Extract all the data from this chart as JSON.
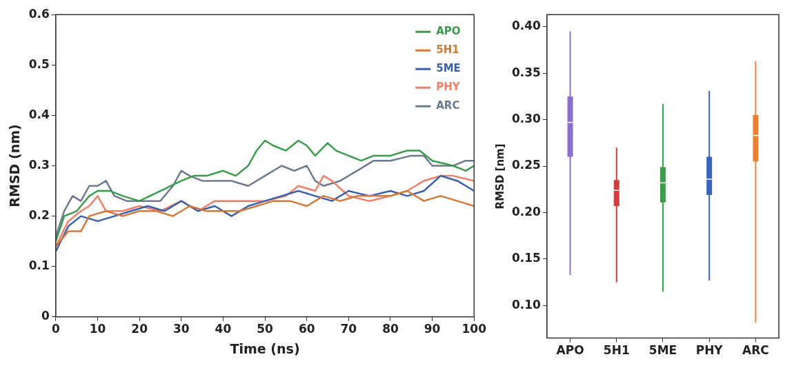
{
  "chart_data": [
    {
      "type": "line",
      "xlabel": "Time (ns)",
      "ylabel": "RMSD (nm)",
      "xlim": [
        0,
        100
      ],
      "ylim": [
        0,
        0.6
      ],
      "xticks": [
        0,
        10,
        20,
        30,
        40,
        50,
        60,
        70,
        80,
        90,
        100
      ],
      "yticks": [
        0,
        0.1,
        0.2,
        0.3,
        0.4,
        0.5,
        0.6
      ],
      "grid": false,
      "legend": "top right",
      "marker": "none",
      "line_style": "solid",
      "series": [
        {
          "name": "APO",
          "color": "#3a9b4a",
          "x": [
            0,
            2,
            5,
            8,
            10,
            13,
            16,
            20,
            25,
            30,
            33,
            36,
            40,
            43,
            46,
            48,
            50,
            52,
            55,
            58,
            60,
            62,
            65,
            67,
            70,
            73,
            76,
            80,
            84,
            87,
            90,
            95,
            98,
            100
          ],
          "values": [
            0.15,
            0.2,
            0.21,
            0.24,
            0.25,
            0.25,
            0.24,
            0.23,
            0.25,
            0.27,
            0.28,
            0.28,
            0.29,
            0.28,
            0.3,
            0.33,
            0.35,
            0.34,
            0.33,
            0.35,
            0.34,
            0.32,
            0.345,
            0.33,
            0.32,
            0.31,
            0.32,
            0.32,
            0.33,
            0.33,
            0.31,
            0.3,
            0.29,
            0.3
          ]
        },
        {
          "name": "5H1",
          "color": "#d2793a",
          "x": [
            0,
            3,
            6,
            8,
            12,
            16,
            20,
            24,
            28,
            32,
            36,
            40,
            44,
            48,
            52,
            56,
            60,
            64,
            68,
            72,
            76,
            80,
            84,
            88,
            92,
            96,
            100
          ],
          "values": [
            0.14,
            0.17,
            0.17,
            0.2,
            0.21,
            0.2,
            0.21,
            0.21,
            0.2,
            0.22,
            0.21,
            0.21,
            0.21,
            0.22,
            0.23,
            0.23,
            0.22,
            0.24,
            0.23,
            0.24,
            0.24,
            0.24,
            0.25,
            0.23,
            0.24,
            0.23,
            0.22
          ]
        },
        {
          "name": "5ME",
          "color": "#3a5fae",
          "x": [
            0,
            3,
            6,
            10,
            14,
            18,
            22,
            26,
            30,
            34,
            38,
            42,
            46,
            50,
            54,
            58,
            62,
            66,
            70,
            75,
            80,
            84,
            88,
            92,
            96,
            100
          ],
          "values": [
            0.13,
            0.18,
            0.2,
            0.19,
            0.2,
            0.21,
            0.22,
            0.21,
            0.23,
            0.21,
            0.22,
            0.2,
            0.22,
            0.23,
            0.24,
            0.25,
            0.24,
            0.23,
            0.25,
            0.24,
            0.25,
            0.24,
            0.25,
            0.28,
            0.27,
            0.25
          ]
        },
        {
          "name": "PHY",
          "color": "#f07f6a",
          "x": [
            0,
            3,
            6,
            8,
            10,
            12,
            16,
            20,
            25,
            30,
            34,
            38,
            42,
            46,
            50,
            55,
            58,
            62,
            64,
            66,
            70,
            75,
            80,
            84,
            88,
            92,
            95,
            100
          ],
          "values": [
            0.14,
            0.19,
            0.21,
            0.22,
            0.24,
            0.21,
            0.21,
            0.22,
            0.21,
            0.23,
            0.21,
            0.23,
            0.23,
            0.23,
            0.23,
            0.24,
            0.26,
            0.25,
            0.28,
            0.27,
            0.24,
            0.23,
            0.24,
            0.25,
            0.27,
            0.28,
            0.28,
            0.27
          ]
        },
        {
          "name": "ARC",
          "color": "#6b7a8f",
          "x": [
            0,
            2,
            4,
            6,
            8,
            10,
            12,
            14,
            17,
            20,
            25,
            28,
            30,
            32,
            35,
            38,
            42,
            46,
            50,
            54,
            57,
            60,
            62,
            64,
            68,
            72,
            76,
            80,
            85,
            88,
            90,
            95,
            98,
            100
          ],
          "values": [
            0.16,
            0.21,
            0.24,
            0.23,
            0.26,
            0.26,
            0.27,
            0.24,
            0.23,
            0.23,
            0.23,
            0.26,
            0.29,
            0.28,
            0.27,
            0.27,
            0.27,
            0.26,
            0.28,
            0.3,
            0.29,
            0.3,
            0.27,
            0.26,
            0.27,
            0.29,
            0.31,
            0.31,
            0.32,
            0.32,
            0.3,
            0.3,
            0.31,
            0.31
          ]
        }
      ]
    },
    {
      "type": "box",
      "ylabel": "RMSD [nm]",
      "categories": [
        "APO",
        "5H1",
        "5ME",
        "PHY",
        "ARC"
      ],
      "ylim": [
        0.065,
        0.413
      ],
      "yticks": [
        {
          "value": 0.1,
          "label": "0.10"
        },
        {
          "value": 0.15,
          "label": "0.15"
        },
        {
          "value": 0.2,
          "label": "0.20"
        },
        {
          "value": 0.25,
          "label": "0.25"
        },
        {
          "value": 0.3,
          "label": "0.30"
        },
        {
          "value": 0.35,
          "label": "0.35"
        },
        {
          "value": 0.4,
          "label": "0.40"
        }
      ],
      "grid": false,
      "colors": [
        "#8a6fcf",
        "#d43d3d",
        "#3aa04a",
        "#3a62b8",
        "#ec8035"
      ],
      "boxes": [
        {
          "low": 0.133,
          "q1": 0.26,
          "median": 0.297,
          "q3": 0.325,
          "high": 0.395
        },
        {
          "low": 0.125,
          "q1": 0.207,
          "median": 0.224,
          "q3": 0.235,
          "high": 0.27
        },
        {
          "low": 0.115,
          "q1": 0.211,
          "median": 0.232,
          "q3": 0.249,
          "high": 0.317
        },
        {
          "low": 0.127,
          "q1": 0.219,
          "median": 0.236,
          "q3": 0.26,
          "high": 0.331
        },
        {
          "low": 0.082,
          "q1": 0.255,
          "median": 0.283,
          "q3": 0.305,
          "high": 0.363
        }
      ]
    }
  ]
}
